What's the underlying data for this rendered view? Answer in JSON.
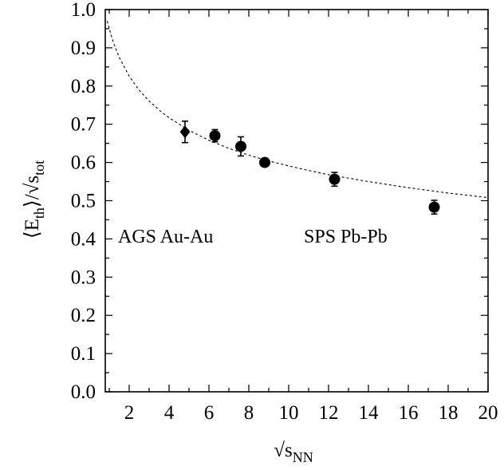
{
  "chart_data": {
    "type": "scatter",
    "title": "",
    "xlabel": {
      "root": "√",
      "base": "s",
      "sub": "NN"
    },
    "ylabel": {
      "open": "⟨E",
      "sub1": "th",
      "mid": "⟩/√s",
      "sub2": "tot"
    },
    "xlim": [
      0.8,
      20
    ],
    "ylim": [
      0.0,
      1.0
    ],
    "x_ticks": [
      "2",
      "4",
      "6",
      "8",
      "10",
      "12",
      "14",
      "16",
      "18",
      "20"
    ],
    "y_ticks": [
      "0.0",
      "0.1",
      "0.2",
      "0.3",
      "0.4",
      "0.5",
      "0.6",
      "0.7",
      "0.8",
      "0.9",
      "1.0"
    ],
    "grid": false,
    "series": [
      {
        "marker": "diamond",
        "points": [
          {
            "x": 4.8,
            "y": 0.68,
            "err": 0.028
          }
        ]
      },
      {
        "marker": "circle",
        "points": [
          {
            "x": 6.3,
            "y": 0.67,
            "err": 0.016
          },
          {
            "x": 7.6,
            "y": 0.642,
            "err": 0.025
          },
          {
            "x": 8.8,
            "y": 0.6,
            "err": 0.008
          },
          {
            "x": 12.3,
            "y": 0.556,
            "err": 0.018
          },
          {
            "x": 17.3,
            "y": 0.483,
            "err": 0.018
          }
        ]
      }
    ],
    "fit_curve": {
      "style": "dotted",
      "x": [
        0.9,
        1,
        1.2,
        1.5,
        2,
        2.5,
        3,
        3.5,
        4,
        5,
        6,
        7,
        8,
        9,
        10,
        11,
        12,
        13,
        14,
        15,
        16,
        17,
        18,
        19,
        20
      ],
      "y": [
        0.97,
        0.95,
        0.915,
        0.875,
        0.826,
        0.789,
        0.761,
        0.737,
        0.717,
        0.684,
        0.658,
        0.637,
        0.619,
        0.604,
        0.591,
        0.579,
        0.568,
        0.559,
        0.55,
        0.542,
        0.534,
        0.527,
        0.52,
        0.514,
        0.508
      ]
    },
    "annotations": [
      "AGS Au-Au",
      "SPS Pb-Pb"
    ]
  }
}
